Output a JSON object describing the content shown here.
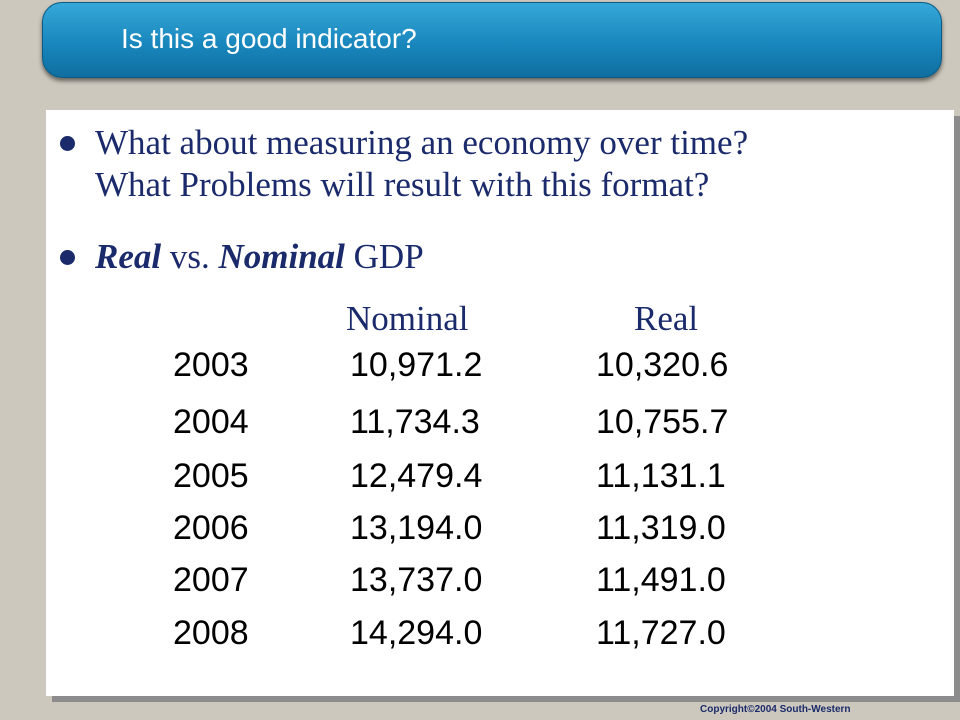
{
  "title": "Is this a good indicator?",
  "bullets": [
    {
      "line1": "What about measuring an economy over time?",
      "line2": "What Problems will result with this format?"
    },
    {
      "part1": "Real",
      "part2": " vs. ",
      "part3": "Nominal",
      "part4": " GDP"
    }
  ],
  "table": {
    "headers": {
      "nominal": "Nominal",
      "real": "Real"
    },
    "rows": [
      {
        "year": "2003",
        "nominal": "10,971.2",
        "real": "10,320.6"
      },
      {
        "year": "2004",
        "nominal": "11,734.3",
        "real": "10,755.7"
      },
      {
        "year": "2005",
        "nominal": "12,479.4",
        "real": "11,131.1"
      },
      {
        "year": "2006",
        "nominal": "13,194.0",
        "real": "11,319.0"
      },
      {
        "year": "2007",
        "nominal": "13,737.0",
        "real": "11,491.0"
      },
      {
        "year": "2008",
        "nominal": "14,294.0",
        "real": "11,727.0"
      }
    ]
  },
  "copyright": "Copyright©2004  South-Western",
  "colors": {
    "title_bar": "#1987bd",
    "text": "#1a2a6b",
    "background": "#cdc8bd"
  }
}
